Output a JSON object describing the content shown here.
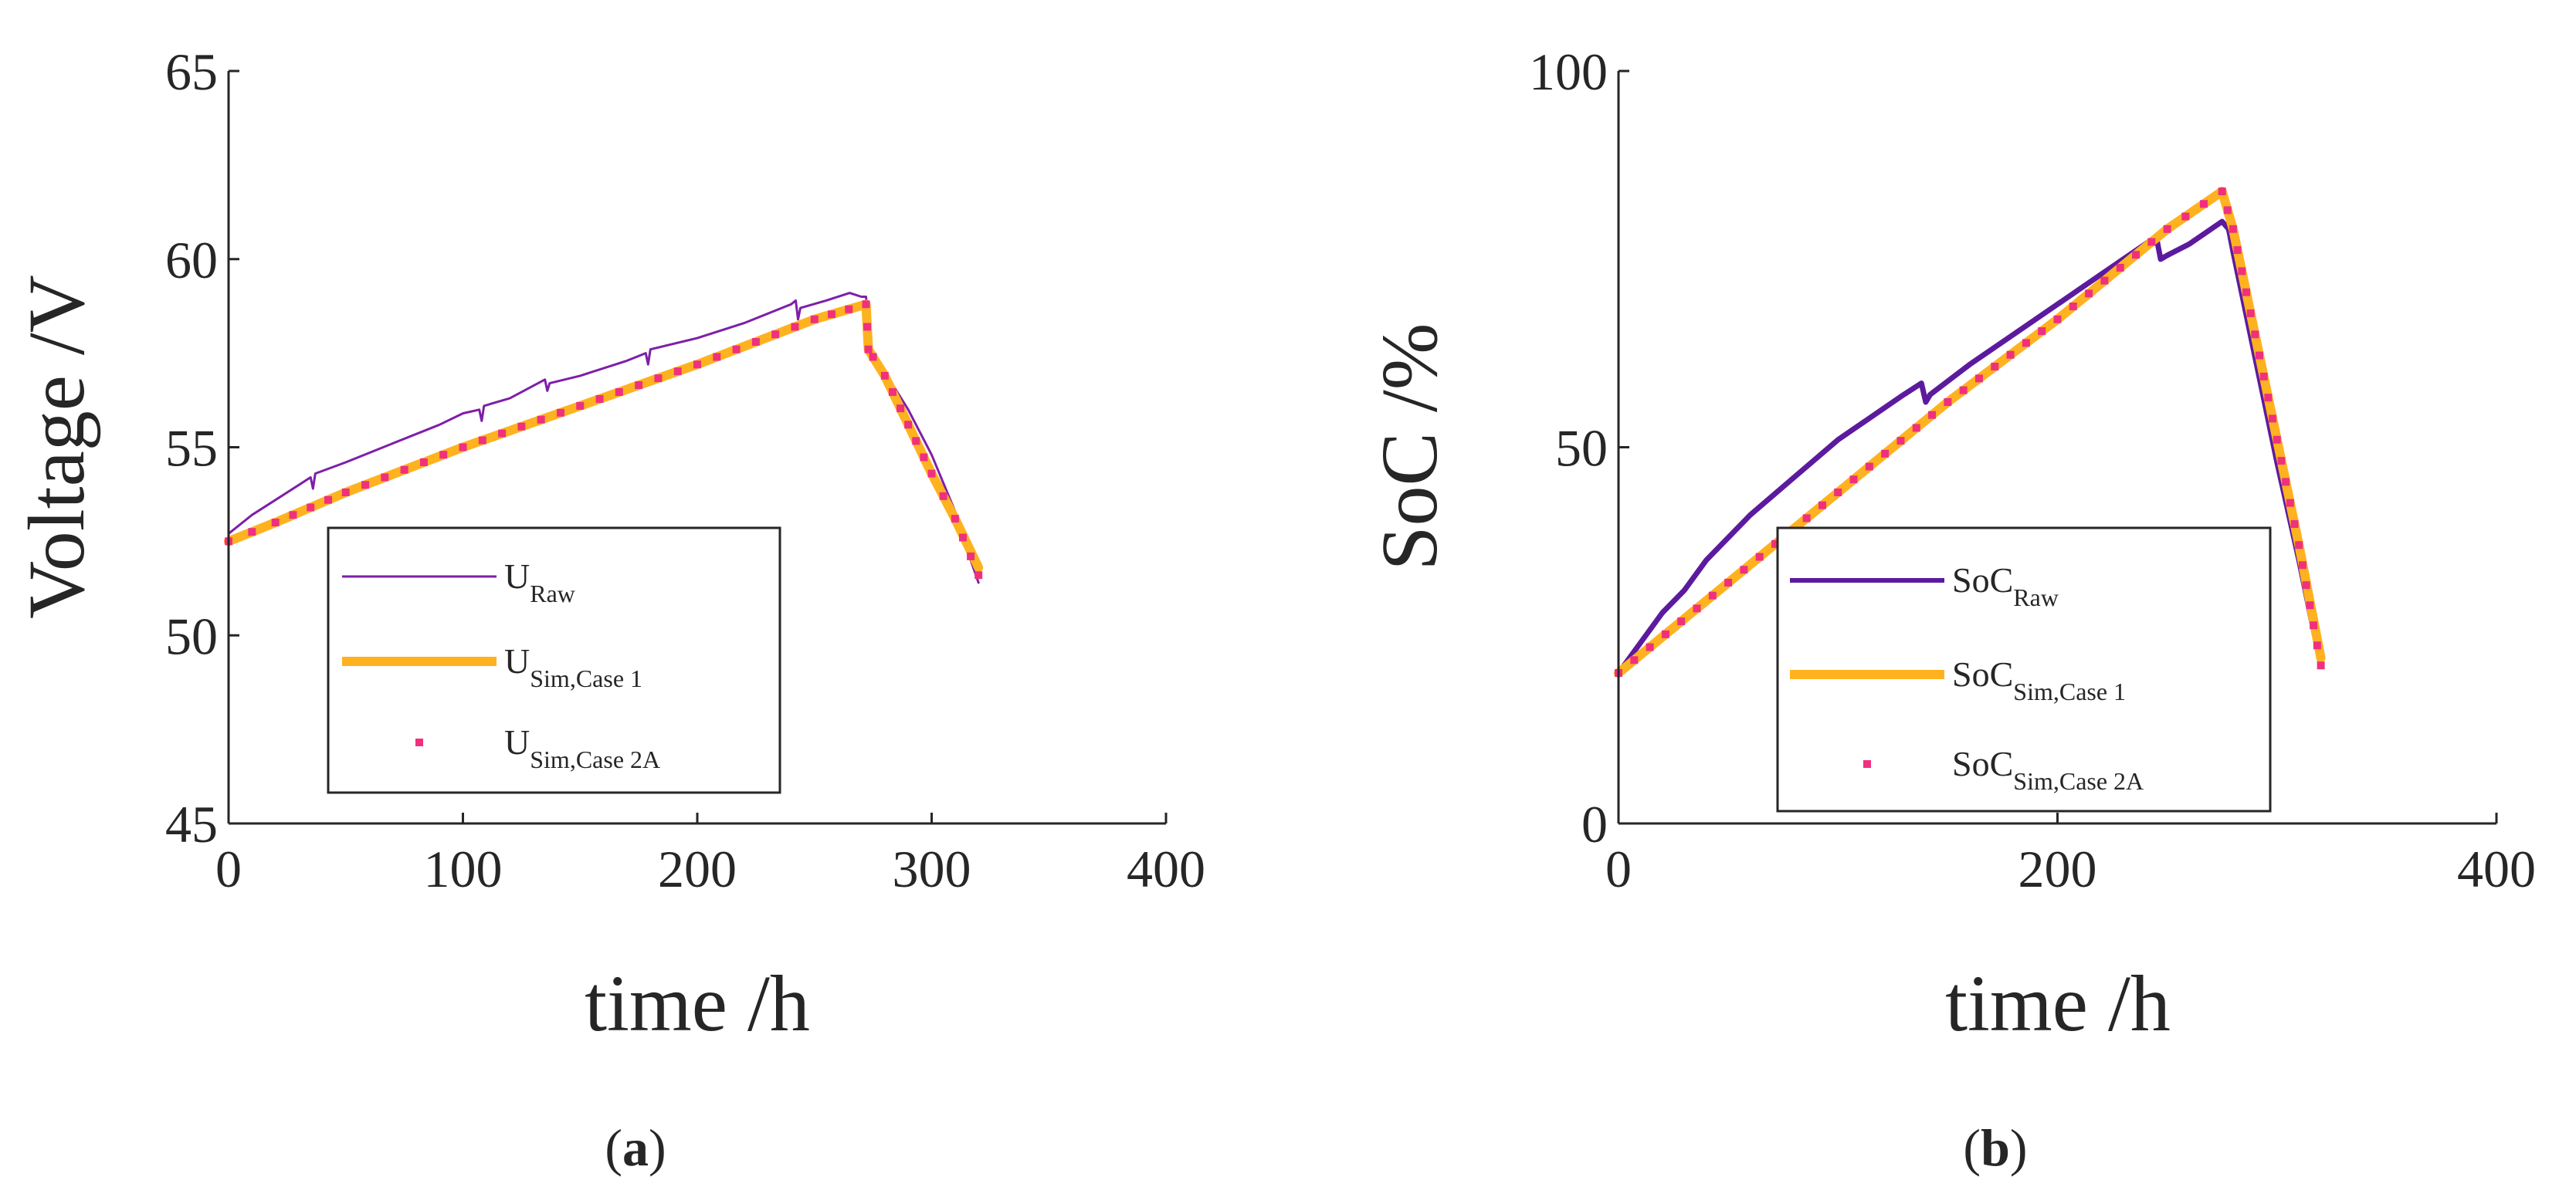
{
  "chart_data": [
    {
      "type": "line",
      "panel_label": "a",
      "xlabel": "time /h",
      "ylabel": "Voltage /V",
      "xlim": [
        0,
        400
      ],
      "ylim": [
        45,
        65
      ],
      "xticks": [
        0,
        100,
        200,
        300,
        400
      ],
      "yticks": [
        45,
        50,
        55,
        60,
        65
      ],
      "legend_position": "bottom-center",
      "series": [
        {
          "name": "U",
          "subscript": "Raw",
          "color": "#7e1fa8",
          "style": "thin-line",
          "x": [
            0,
            10,
            20,
            30,
            35,
            36,
            37,
            50,
            70,
            90,
            100,
            107,
            108,
            109,
            120,
            135,
            136,
            137,
            150,
            170,
            178,
            179,
            180,
            200,
            220,
            240,
            242,
            243,
            244,
            255,
            265,
            270,
            272,
            274,
            275,
            280,
            290,
            300,
            310,
            315,
            320
          ],
          "y": [
            52.7,
            53.2,
            53.6,
            54.0,
            54.2,
            53.9,
            54.3,
            54.6,
            55.1,
            55.6,
            55.9,
            56.0,
            55.7,
            56.1,
            56.3,
            56.8,
            56.5,
            56.7,
            56.9,
            57.3,
            57.5,
            57.2,
            57.6,
            57.9,
            58.3,
            58.8,
            58.9,
            58.4,
            58.7,
            58.9,
            59.1,
            59.0,
            59.0,
            57.6,
            57.5,
            57.0,
            56.0,
            54.8,
            53.3,
            52.3,
            51.4
          ]
        },
        {
          "name": "U",
          "subscript": "Sim,Case 1",
          "color": "#ffb21f",
          "style": "thick-line",
          "x": [
            0,
            20,
            50,
            100,
            150,
            200,
            250,
            272,
            273,
            275,
            280,
            290,
            300,
            310,
            320
          ],
          "y": [
            52.5,
            53.0,
            53.8,
            55.0,
            56.1,
            57.2,
            58.4,
            58.8,
            57.6,
            57.4,
            56.9,
            55.6,
            54.3,
            53.1,
            51.8
          ]
        },
        {
          "name": "U",
          "subscript": "Sim,Case 2A",
          "color": "#f0307f",
          "style": "dots",
          "x": [
            0,
            20,
            50,
            100,
            150,
            200,
            250,
            272,
            273,
            275,
            280,
            290,
            300,
            310,
            320
          ],
          "y": [
            52.5,
            53.0,
            53.8,
            55.0,
            56.1,
            57.2,
            58.4,
            58.8,
            57.6,
            57.4,
            56.9,
            55.6,
            54.3,
            53.1,
            51.6
          ]
        }
      ]
    },
    {
      "type": "line",
      "panel_label": "b",
      "xlabel": "time /h",
      "ylabel": "SoC /%",
      "xlim": [
        0,
        400
      ],
      "ylim": [
        0,
        100
      ],
      "xticks": [
        0,
        200,
        400
      ],
      "yticks": [
        0,
        50,
        100
      ],
      "legend_position": "bottom-center",
      "series": [
        {
          "name": "SoC",
          "subscript": "Raw",
          "color": "#5c1a9e",
          "style": "medium-line",
          "x": [
            0,
            10,
            20,
            30,
            40,
            60,
            80,
            100,
            120,
            130,
            138,
            140,
            142,
            160,
            180,
            200,
            220,
            240,
            245,
            247,
            250,
            260,
            270,
            275,
            278,
            280,
            290,
            300,
            310,
            320
          ],
          "y": [
            20,
            24,
            28,
            31,
            35,
            41,
            46,
            51,
            55,
            57,
            58.5,
            56,
            57,
            61,
            65,
            69,
            73,
            77,
            78,
            75,
            75.5,
            77,
            79,
            80,
            79,
            76,
            62,
            48,
            35,
            21
          ]
        },
        {
          "name": "SoC",
          "subscript": "Sim,Case 1",
          "color": "#ffb21f",
          "style": "thick-line",
          "x": [
            0,
            50,
            100,
            150,
            200,
            250,
            275,
            280,
            290,
            300,
            310,
            320
          ],
          "y": [
            20,
            32,
            44,
            56,
            67,
            79,
            84,
            79,
            65,
            51,
            37,
            22
          ]
        },
        {
          "name": "SoC",
          "subscript": "Sim,Case 2A",
          "color": "#f0307f",
          "style": "dots",
          "x": [
            0,
            50,
            100,
            150,
            200,
            250,
            275,
            280,
            290,
            300,
            310,
            320
          ],
          "y": [
            20,
            32,
            44,
            56,
            67,
            79,
            84,
            79,
            65,
            51,
            37,
            21
          ]
        }
      ]
    }
  ]
}
